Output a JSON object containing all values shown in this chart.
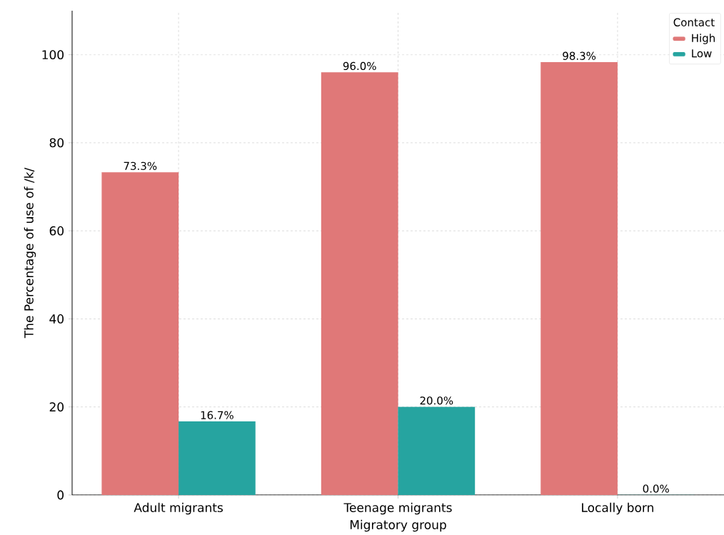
{
  "chart_data": {
    "type": "bar",
    "xlabel": "Migratory group",
    "ylabel": "The Percentage of use of /k/",
    "legend_title": "Contact",
    "categories": [
      "Adult migrants",
      "Teenage migrants",
      "Locally born"
    ],
    "series": [
      {
        "name": "High",
        "color": "#e07878",
        "values": [
          73.3,
          96.0,
          98.3
        ],
        "value_labels": [
          "73.3%",
          "96.0%",
          "98.3%"
        ]
      },
      {
        "name": "Low",
        "color": "#26a4a0",
        "values": [
          16.7,
          20.0,
          0.0
        ],
        "value_labels": [
          "16.7%",
          "20.0%",
          "0.0%"
        ]
      }
    ],
    "ylim": [
      0,
      110
    ],
    "yticks": [
      0,
      20,
      40,
      60,
      80,
      100
    ],
    "grid": true,
    "legend": "top right"
  }
}
